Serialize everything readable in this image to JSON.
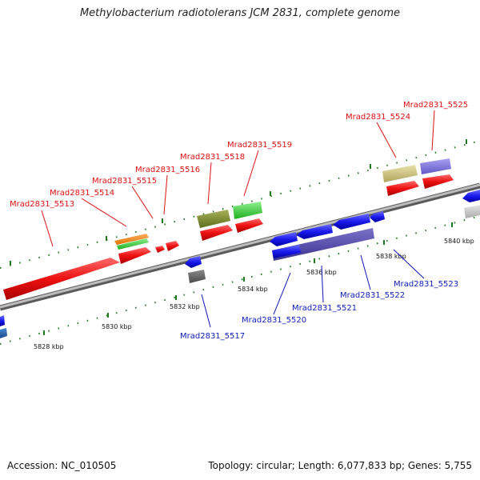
{
  "title": "Methylobacterium radiotolerans JCM 2831, complete genome",
  "footer": {
    "accession": "Accession: NC_010505",
    "summary": "Topology: circular; Length: 6,077,833 bp; Genes: 5,755"
  },
  "kbp_labels": [
    "5828 kbp",
    "5830 kbp",
    "5832 kbp",
    "5834 kbp",
    "5836 kbp",
    "5838 kbp",
    "5840 kbp"
  ],
  "genes_top": [
    "Mrad2831_5513",
    "Mrad2831_5514",
    "Mrad2831_5515",
    "Mrad2831_5516",
    "Mrad2831_5518",
    "Mrad2831_5519",
    "Mrad2831_5524",
    "Mrad2831_5525"
  ],
  "genes_bottom": [
    "Mrad2831_5517",
    "Mrad2831_5520",
    "Mrad2831_5521",
    "Mrad2831_5522",
    "Mrad2831_5523"
  ],
  "colors": {
    "backbone": "#8a8a8a",
    "forward": "#ee1111",
    "reverse": "#1a1aee",
    "tick": "#1f7a1f",
    "label_top": "#dd1111",
    "label_bottom": "#1111bb"
  }
}
